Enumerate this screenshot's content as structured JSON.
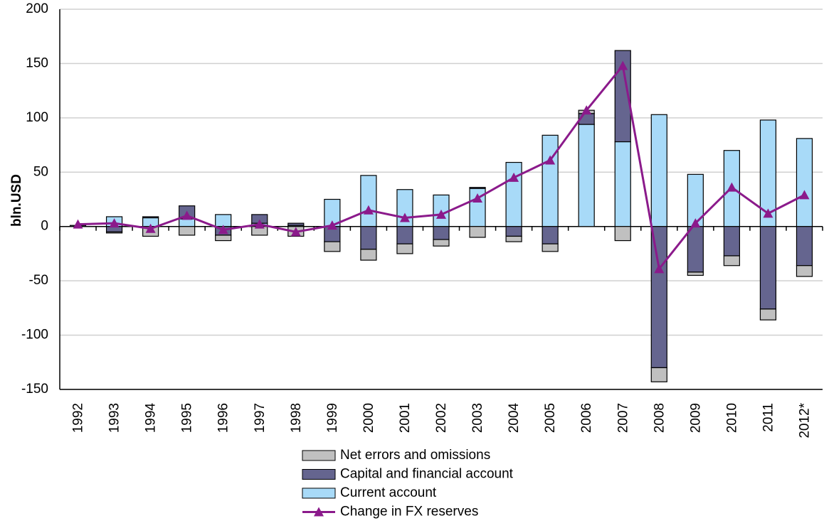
{
  "chart_data": {
    "type": "bar",
    "stacked": true,
    "y_label": "bln.USD",
    "categories": [
      "1992",
      "1993",
      "1994",
      "1995",
      "1996",
      "1997",
      "1998",
      "1999",
      "2000",
      "2001",
      "2002",
      "2003",
      "2004",
      "2005",
      "2006",
      "2007",
      "2008",
      "2009",
      "2010",
      "2011",
      "2012*"
    ],
    "series": [
      {
        "name": "Net errors and omissions",
        "color": "#c0c0c0",
        "values": [
          0,
          -1,
          -9,
          -8,
          -5,
          -8,
          -9,
          -9,
          -10,
          -9,
          -6,
          -10,
          -5,
          -7,
          3,
          -13,
          -13,
          -3,
          -9,
          -10,
          -10
        ]
      },
      {
        "name": "Capital and financial account",
        "color": "#65658f",
        "values": [
          1,
          -5,
          1,
          12,
          -8,
          8,
          2,
          -14,
          -21,
          -16,
          -12,
          1,
          -9,
          -16,
          10,
          84,
          -130,
          -42,
          -27,
          -76,
          -36
        ]
      },
      {
        "name": "Current account",
        "color": "#a8daf8",
        "values": [
          0,
          9,
          8,
          7,
          11,
          3,
          1,
          25,
          47,
          34,
          29,
          35,
          59,
          84,
          94,
          78,
          103,
          48,
          70,
          98,
          81
        ]
      },
      {
        "name": "Change in FX reserves",
        "color": "#8b1a8b",
        "type": "line",
        "values": [
          2,
          3,
          -2,
          10,
          -3,
          2,
          -5,
          1,
          15,
          8,
          11,
          26,
          45,
          61,
          107,
          148,
          -39,
          3,
          36,
          12,
          29
        ]
      }
    ],
    "ylim": [
      -150,
      200
    ],
    "yticks": [
      -150,
      -100,
      -50,
      0,
      50,
      100,
      150,
      200
    ],
    "grid": true
  }
}
